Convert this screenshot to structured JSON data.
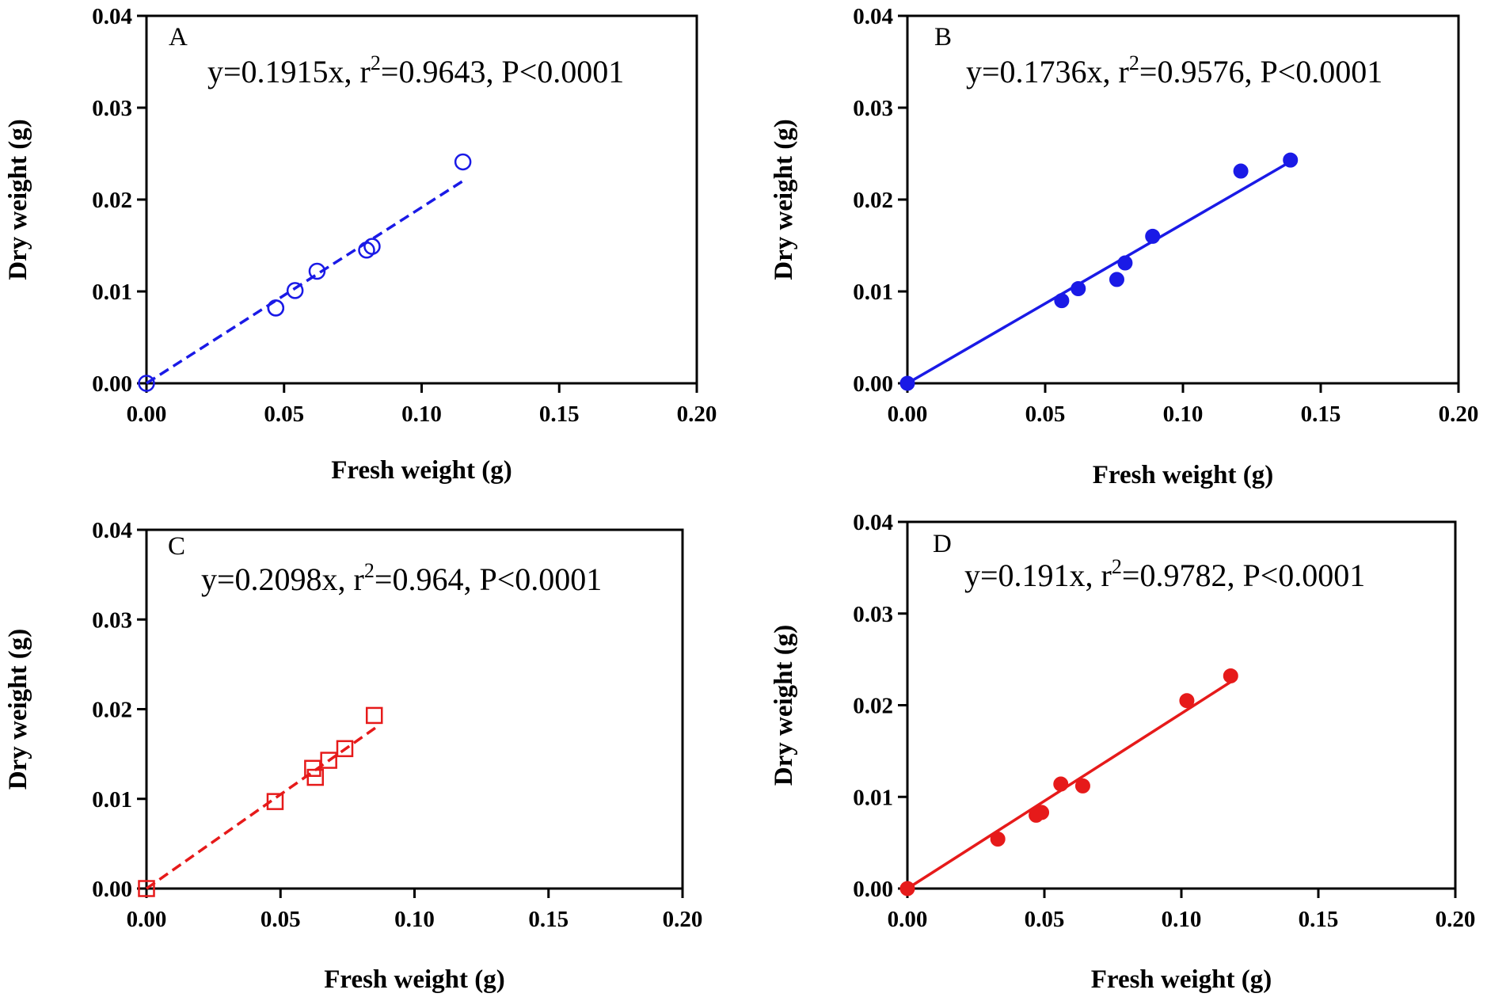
{
  "chart_data": [
    {
      "type": "scatter",
      "panel_label": "A",
      "equation": "y=0.1915x, r",
      "r2_value": "=0.9643, P<0.0001",
      "r2_exponent": "2",
      "xlabel": "Fresh weight (g)",
      "ylabel": "Dry weight (g)",
      "xlim": [
        0,
        0.2
      ],
      "ylim": [
        0,
        0.04
      ],
      "xticks": [
        "0.00",
        "0.05",
        "0.10",
        "0.15",
        "0.20"
      ],
      "yticks": [
        "0.00",
        "0.01",
        "0.02",
        "0.03",
        "0.04"
      ],
      "marker": "open-circle",
      "color": "#1a1ae6",
      "fit_line": "dashed",
      "slope": 0.1915,
      "fit_x_max": 0.116,
      "x": [
        0.0,
        0.047,
        0.047,
        0.054,
        0.062,
        0.08,
        0.082,
        0.115
      ],
      "y": [
        0.0,
        0.0082,
        0.0082,
        0.0101,
        0.0122,
        0.0145,
        0.0149,
        0.0241
      ]
    },
    {
      "type": "scatter",
      "panel_label": "B",
      "equation": "y=0.1736x, r",
      "r2_value": "=0.9576, P<0.0001",
      "r2_exponent": "2",
      "xlabel": "Fresh weight (g)",
      "ylabel": "Dry weight (g)",
      "xlim": [
        0,
        0.2
      ],
      "ylim": [
        0,
        0.04
      ],
      "xticks": [
        "0.00",
        "0.05",
        "0.10",
        "0.15",
        "0.20"
      ],
      "yticks": [
        "0.00",
        "0.01",
        "0.02",
        "0.03",
        "0.04"
      ],
      "marker": "filled-circle",
      "color": "#1a1ae6",
      "fit_line": "solid",
      "slope": 0.1736,
      "fit_x_max": 0.139,
      "x": [
        0.0,
        0.056,
        0.062,
        0.076,
        0.079,
        0.089,
        0.121,
        0.139
      ],
      "y": [
        0.0,
        0.009,
        0.0103,
        0.0113,
        0.0131,
        0.016,
        0.0231,
        0.0243
      ]
    },
    {
      "type": "scatter",
      "panel_label": "C",
      "equation": "y=0.2098x, r",
      "r2_value": "=0.964, P<0.0001",
      "r2_exponent": "2",
      "xlabel": "Fresh weight (g)",
      "ylabel": "Dry weight (g)",
      "xlim": [
        0,
        0.2
      ],
      "ylim": [
        0,
        0.04
      ],
      "xticks": [
        "0.00",
        "0.05",
        "0.10",
        "0.15",
        "0.20"
      ],
      "yticks": [
        "0.00",
        "0.01",
        "0.02",
        "0.03",
        "0.04"
      ],
      "marker": "open-square",
      "color": "#e61a1a",
      "fit_line": "dashed",
      "slope": 0.2098,
      "fit_x_max": 0.086,
      "x": [
        0.0,
        0.048,
        0.062,
        0.063,
        0.068,
        0.074,
        0.085
      ],
      "y": [
        0.0,
        0.0097,
        0.0134,
        0.0124,
        0.0143,
        0.0156,
        0.0193
      ]
    },
    {
      "type": "scatter",
      "panel_label": "D",
      "equation": "y=0.191x, r",
      "r2_value": "=0.9782, P<0.0001",
      "r2_exponent": "2",
      "xlabel": "Fresh weight (g)",
      "ylabel": "Dry weight (g)",
      "xlim": [
        0,
        0.2
      ],
      "ylim": [
        0,
        0.04
      ],
      "xticks": [
        "0.00",
        "0.05",
        "0.10",
        "0.15",
        "0.20"
      ],
      "yticks": [
        "0.00",
        "0.01",
        "0.02",
        "0.03",
        "0.04"
      ],
      "marker": "filled-circle",
      "color": "#e61a1a",
      "fit_line": "solid",
      "slope": 0.191,
      "fit_x_max": 0.119,
      "x": [
        0.0,
        0.033,
        0.047,
        0.049,
        0.056,
        0.064,
        0.102,
        0.118
      ],
      "y": [
        0.0,
        0.0054,
        0.008,
        0.0083,
        0.0114,
        0.0112,
        0.0205,
        0.0232
      ]
    }
  ]
}
